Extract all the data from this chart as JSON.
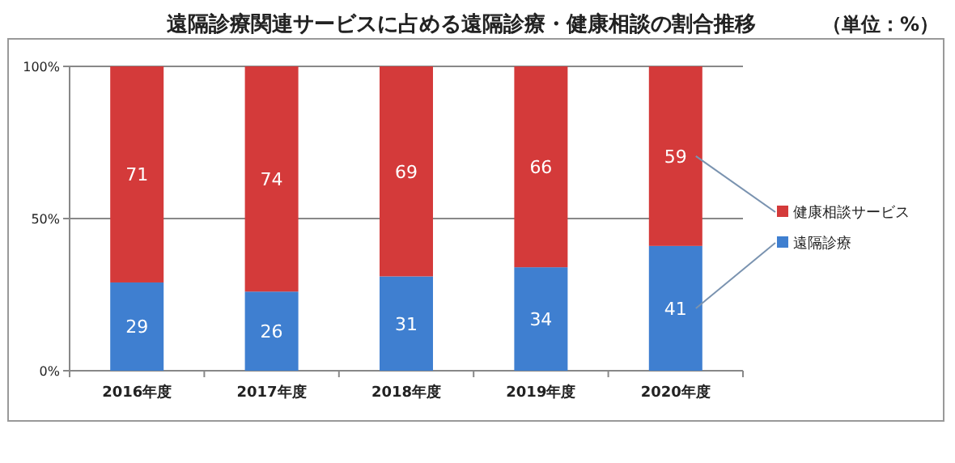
{
  "chart_data": {
    "type": "bar",
    "title": "遠隔診療関連サービスに占める遠隔診療・健康相談の割合推移",
    "subtitle": "（単位：%）",
    "categories": [
      "2016年度",
      "2017年度",
      "2018年度",
      "2019年度",
      "2020年度"
    ],
    "stacked": true,
    "series": [
      {
        "name": "遠隔診療",
        "color": "#3f7fd0",
        "values": [
          29,
          26,
          31,
          34,
          41
        ]
      },
      {
        "name": "健康相談サービス",
        "color": "#d43a3a",
        "values": [
          71,
          74,
          69,
          66,
          59
        ]
      }
    ],
    "ylim": [
      0,
      100
    ],
    "yticks": [
      {
        "value": 0,
        "label": "0%"
      },
      {
        "value": 50,
        "label": "50%"
      },
      {
        "value": 100,
        "label": "100%"
      }
    ],
    "grid": "y",
    "legend": "right",
    "data_labels": true
  }
}
